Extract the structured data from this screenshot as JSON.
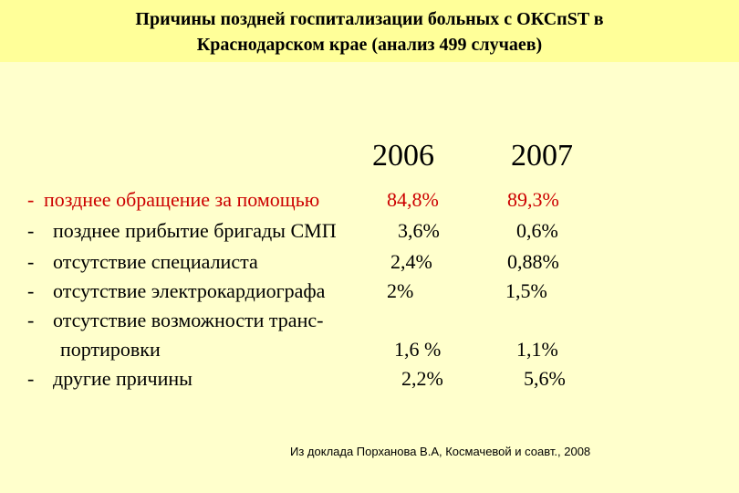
{
  "title": {
    "line1": "Причины поздней госпитализации больных с ОКСпST в",
    "line2": "Краснодарском крае (анализ 499 случаев)"
  },
  "years": [
    "2006",
    "2007"
  ],
  "reasons": [
    {
      "dash": "-",
      "label": "позднее обращение за помощью",
      "v2006": "84,8%",
      "v2007": "89,3%"
    },
    {
      "dash": "-",
      "label": "позднее прибытие бригады СМП",
      "v2006": "3,6%",
      "v2007": "0,6%"
    },
    {
      "dash": "-",
      "label": "отсутствие специалиста",
      "v2006": "2,4%",
      "v2007": "0,88%"
    },
    {
      "dash": "-",
      "label": "отсутствие электрокардиографа",
      "v2006": "2%",
      "v2007": "1,5%"
    },
    {
      "dash": "-",
      "label": "отсутствие возможности транс-",
      "label_cont": "портировки",
      "v2006": "1,6 %",
      "v2007": "1,1%"
    },
    {
      "dash": "-",
      "label": "другие причины",
      "v2006": "2,2%",
      "v2007": "5,6%"
    }
  ],
  "source": "Из доклада Порханова В.А, Космачевой и соавт., 2008",
  "colors": {
    "background": "#FFFFCC",
    "title_background": "#FFFF99",
    "highlight": "#CC0000"
  }
}
